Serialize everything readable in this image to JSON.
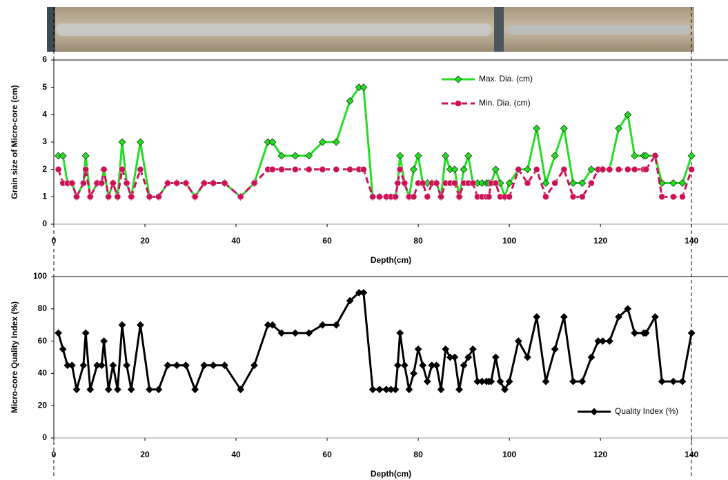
{
  "chart_data": [
    {
      "type": "line",
      "ylabel": "Grain size of Micro-core  (cm)",
      "xlabel": "Depth(cm)",
      "xlim": [
        0,
        148
      ],
      "ylim": [
        0,
        6
      ],
      "xticks": [
        0,
        20,
        40,
        60,
        80,
        100,
        120,
        140
      ],
      "yticks": [
        0,
        1,
        2,
        3,
        4,
        5,
        6
      ],
      "legend": "upper right",
      "x": [
        1,
        2,
        3,
        4,
        5,
        6.5,
        7,
        8,
        9.5,
        10.5,
        11,
        12,
        13,
        14,
        15,
        16,
        17,
        19,
        21,
        23,
        25,
        27,
        29,
        31,
        33,
        35,
        37.5,
        41,
        44,
        47,
        48,
        50,
        53,
        56,
        59,
        62,
        65,
        67,
        68,
        70,
        71.5,
        73,
        74,
        75,
        75.5,
        76,
        77,
        78,
        79,
        80,
        81,
        82,
        83,
        84,
        85,
        86,
        87,
        88,
        89,
        90,
        91,
        92,
        93,
        94,
        95,
        95.5,
        96,
        97,
        98,
        99,
        100,
        102,
        104,
        106,
        108,
        110,
        112,
        114,
        116,
        118,
        119.5,
        120.5,
        122,
        124,
        126,
        127.5,
        129.5,
        130,
        132,
        133.5,
        136,
        138,
        140
      ],
      "series": [
        {
          "name": "Max. Dia. (cm)",
          "color": "#22dd22",
          "marker": "diamond",
          "dashed": false,
          "values": [
            2.5,
            2.5,
            1.5,
            1.5,
            1,
            1.5,
            2.5,
            1,
            1.5,
            1.5,
            2,
            1,
            1.5,
            1,
            3,
            1.5,
            1,
            3,
            1,
            1,
            1.5,
            1.5,
            1.5,
            1,
            1.5,
            1.5,
            1.5,
            1,
            1.5,
            3,
            3,
            2.5,
            2.5,
            2.5,
            3,
            3,
            4.5,
            5,
            5,
            1,
            1,
            1,
            1,
            1,
            1.5,
            2.5,
            1.5,
            1,
            2,
            2.5,
            1.5,
            1.5,
            1.5,
            1.5,
            1,
            2.5,
            2,
            2,
            1,
            2,
            2.5,
            1.5,
            1.5,
            1.5,
            1.5,
            1.5,
            1.5,
            2,
            1.5,
            1,
            1.5,
            2,
            2,
            3.5,
            1.5,
            2.5,
            3.5,
            1.5,
            1.5,
            2,
            2,
            2,
            2,
            3.5,
            4,
            2.5,
            2.5,
            2.5,
            2.5,
            1.5,
            1.5,
            1.5,
            2.5
          ]
        },
        {
          "name": "Min. Dia. (cm)",
          "color": "#cc1155",
          "marker": "circle",
          "dashed": true,
          "values": [
            2,
            1.5,
            1.5,
            1.5,
            1,
            1.5,
            2,
            1,
            1.5,
            1.5,
            2,
            1,
            1.5,
            1,
            2,
            1.5,
            1,
            2,
            1,
            1,
            1.5,
            1.5,
            1.5,
            1,
            1.5,
            1.5,
            1.5,
            1,
            1.5,
            2,
            2,
            2,
            2,
            2,
            2,
            2,
            2,
            2,
            2,
            1,
            1,
            1,
            1,
            1,
            1.5,
            2,
            1.5,
            1,
            1,
            1.5,
            1.5,
            1,
            1.5,
            1.5,
            1,
            1.5,
            1.5,
            1.5,
            1,
            1.5,
            1.5,
            1.5,
            1,
            1,
            1,
            1,
            1.5,
            1.5,
            1,
            1,
            1,
            2,
            1.5,
            2,
            1,
            1.5,
            2,
            1,
            1,
            1.5,
            2,
            2,
            2,
            2,
            2,
            2,
            2,
            2,
            2.5,
            1,
            1,
            1,
            2
          ]
        }
      ]
    },
    {
      "type": "line",
      "ylabel": "Micro-core  Quality  Index (%)",
      "xlabel": "Depth(cm)",
      "xlim": [
        0,
        148
      ],
      "ylim": [
        0,
        100
      ],
      "xticks": [
        0,
        20,
        40,
        60,
        80,
        100,
        120,
        140
      ],
      "yticks": [
        0,
        20,
        40,
        60,
        80,
        100
      ],
      "legend": "lower right",
      "x": [
        1,
        2,
        3,
        4,
        5,
        6.5,
        7,
        8,
        9.5,
        10.5,
        11,
        12,
        13,
        14,
        15,
        16,
        17,
        19,
        21,
        23,
        25,
        27,
        29,
        31,
        33,
        35,
        37.5,
        41,
        44,
        47,
        48,
        50,
        53,
        56,
        59,
        62,
        65,
        67,
        68,
        70,
        71.5,
        73,
        74,
        75,
        75.5,
        76,
        77,
        78,
        79,
        80,
        81,
        82,
        83,
        84,
        85,
        86,
        87,
        88,
        89,
        90,
        91,
        92,
        93,
        94,
        95,
        95.5,
        96,
        97,
        98,
        99,
        100,
        102,
        104,
        106,
        108,
        110,
        112,
        114,
        116,
        118,
        119.5,
        120.5,
        122,
        124,
        126,
        127.5,
        129.5,
        130,
        132,
        133.5,
        136,
        138,
        140
      ],
      "series": [
        {
          "name": "Quality Index (%)",
          "color": "#000000",
          "marker": "diamond",
          "dashed": false,
          "values": [
            65,
            55,
            45,
            45,
            30,
            45,
            65,
            30,
            45,
            45,
            60,
            30,
            45,
            30,
            70,
            45,
            30,
            70,
            30,
            30,
            45,
            45,
            45,
            30,
            45,
            45,
            45,
            30,
            45,
            70,
            70,
            65,
            65,
            65,
            70,
            70,
            85,
            90,
            90,
            30,
            30,
            30,
            30,
            30,
            45,
            65,
            45,
            30,
            40,
            55,
            45,
            35,
            45,
            45,
            30,
            55,
            50,
            50,
            30,
            45,
            50,
            55,
            35,
            35,
            35,
            35,
            35,
            50,
            35,
            30,
            35,
            60,
            50,
            75,
            35,
            55,
            75,
            35,
            35,
            50,
            60,
            60,
            60,
            75,
            80,
            65,
            65,
            65,
            75,
            35,
            35,
            35,
            65
          ]
        }
      ]
    }
  ]
}
